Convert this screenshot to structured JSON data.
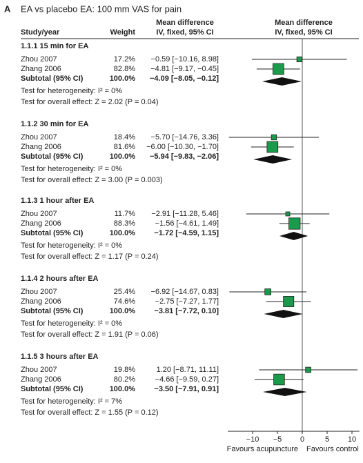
{
  "chart_data": {
    "type": "forest",
    "panel": "A",
    "title": "EA vs placebo EA: 100 mm VAS for pain",
    "headers": {
      "study": "Study/year",
      "weight": "Weight",
      "md_text": "Mean difference",
      "md_text_sub": "IV, fixed, 95% CI",
      "md_plot": "Mean difference",
      "md_plot_sub": "IV, fixed, 95% CI"
    },
    "groups": [
      {
        "name": "1.1.1 15 min for EA",
        "studies": [
          {
            "name": "Zhou 2007",
            "weight": 17.2,
            "weight_label": "17.2%",
            "md": -0.59,
            "lo": -10.16,
            "hi": 8.98,
            "ci_label": "−0.59 [−10.16, 8.98]"
          },
          {
            "name": "Zhang 2006",
            "weight": 82.8,
            "weight_label": "82.8%",
            "md": -4.81,
            "lo": -9.17,
            "hi": -0.45,
            "ci_label": "−4.81 [−9.17, −0.45]"
          }
        ],
        "subtotal": {
          "name": "Subtotal (95% CI)",
          "weight": 100,
          "weight_label": "100.0%",
          "md": -4.09,
          "lo": -8.05,
          "hi": -0.12,
          "ci_label": "−4.09 [−8.05, −0.12]"
        },
        "heterogeneity": "Test for heterogeneity: I² = 0%",
        "overall": "Test for overall effect: Z = 2.02 (P = 0.04)"
      },
      {
        "name": "1.1.2 30 min for EA",
        "studies": [
          {
            "name": "Zhou 2007",
            "weight": 18.4,
            "weight_label": "18.4%",
            "md": -5.7,
            "lo": -14.76,
            "hi": 3.36,
            "ci_label": "−5.70 [−14.76, 3.36]"
          },
          {
            "name": "Zhang 2006",
            "weight": 81.6,
            "weight_label": "81.6%",
            "md": -6.0,
            "lo": -10.3,
            "hi": -1.7,
            "ci_label": "−6.00 [−10.30, −1.70]"
          }
        ],
        "subtotal": {
          "name": "Subtotal (95% CI)",
          "weight": 100,
          "weight_label": "100.0%",
          "md": -5.94,
          "lo": -9.83,
          "hi": -2.06,
          "ci_label": "−5.94 [−9.83, −2.06]"
        },
        "heterogeneity": "Test for heterogeneity: I² = 0%",
        "overall": "Test for overall effect: Z = 3.00 (P = 0.003)"
      },
      {
        "name": "1.1.3 1 hour after EA",
        "studies": [
          {
            "name": "Zhou 2007",
            "weight": 11.7,
            "weight_label": "11.7%",
            "md": -2.91,
            "lo": -11.28,
            "hi": 5.46,
            "ci_label": "−2.91 [−11.28, 5.46]"
          },
          {
            "name": "Zhang 2006",
            "weight": 88.3,
            "weight_label": "88.3%",
            "md": -1.56,
            "lo": -4.61,
            "hi": 1.49,
            "ci_label": "−1.56 [−4.61, 1.49]"
          }
        ],
        "subtotal": {
          "name": "Subtotal (95% CI)",
          "weight": 100,
          "weight_label": "100.0%",
          "md": -1.72,
          "lo": -4.59,
          "hi": 1.15,
          "ci_label": "−1.72 [−4.59, 1.15]"
        },
        "heterogeneity": "Test for heterogeneity: I² = 0%",
        "overall": "Test for overall effect: Z = 1.17 (P = 0.24)"
      },
      {
        "name": "1.1.4 2 hours after EA",
        "studies": [
          {
            "name": "Zhou 2007",
            "weight": 25.4,
            "weight_label": "25.4%",
            "md": -6.92,
            "lo": -14.67,
            "hi": 0.83,
            "ci_label": "−6.92 [−14.67, 0.83]"
          },
          {
            "name": "Zhang 2006",
            "weight": 74.6,
            "weight_label": "74.6%",
            "md": -2.75,
            "lo": -7.27,
            "hi": 1.77,
            "ci_label": "−2.75 [−7.27, 1.77]"
          }
        ],
        "subtotal": {
          "name": "Subtotal (95% CI)",
          "weight": 100,
          "weight_label": "100.0%",
          "md": -3.81,
          "lo": -7.72,
          "hi": 0.1,
          "ci_label": "−3.81 [−7.72, 0.10]"
        },
        "heterogeneity": "Test for heterogeneity: I² = 0%",
        "overall": "Test for overall effect: Z = 1.91 (P = 0.06)"
      },
      {
        "name": "1.1.5 3 hours after EA",
        "studies": [
          {
            "name": "Zhou 2007",
            "weight": 19.8,
            "weight_label": "19.8%",
            "md": 1.2,
            "lo": -8.71,
            "hi": 11.11,
            "ci_label": "1.20 [−8.71, 11.11]"
          },
          {
            "name": "Zhang 2006",
            "weight": 80.2,
            "weight_label": "80.2%",
            "md": -4.66,
            "lo": -9.59,
            "hi": 0.27,
            "ci_label": "−4.66 [−9.59, 0.27]"
          }
        ],
        "subtotal": {
          "name": "Subtotal (95% CI)",
          "weight": 100,
          "weight_label": "100.0%",
          "md": -3.5,
          "lo": -7.91,
          "hi": 0.91,
          "ci_label": "−3.50 [−7.91, 0.91]"
        },
        "heterogeneity": "Test for heterogeneity: I² = 7%",
        "overall": "Test for overall effect: Z = 1.55 (P = 0.12)"
      }
    ],
    "xlim": [
      -15,
      11.5
    ],
    "xticks": [
      {
        "value": -10,
        "label": "−10"
      },
      {
        "value": -5,
        "label": "−5"
      },
      0,
      5,
      10
    ],
    "favours_left": "Favours acupuncture",
    "favours_right": "Favours control",
    "box_color": "#1a9a4a",
    "diamond_color": "#111111"
  }
}
